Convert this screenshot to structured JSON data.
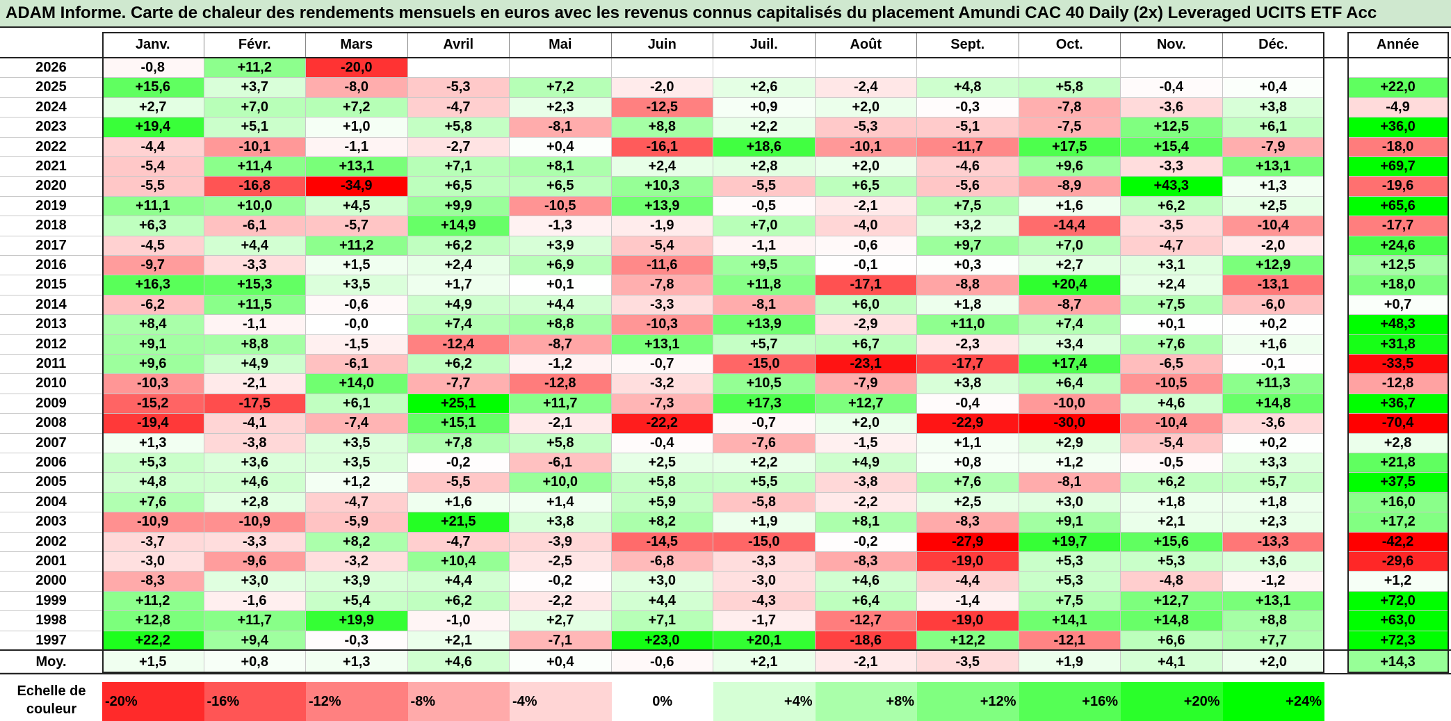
{
  "title": "ADAM Informe. Carte de chaleur des rendements mensuels en euros avec les revenus connus capitalisés du placement Amundi CAC 40 Daily (2x) Leveraged UCITS ETF Acc",
  "chart_data": {
    "type": "heatmap",
    "title": "ADAM Informe. Carte de chaleur des rendements mensuels en euros avec les revenus connus capitalisés du placement Amundi CAC 40 Daily (2x) Leveraged UCITS ETF Acc",
    "months": [
      "Janv.",
      "Févr.",
      "Mars",
      "Avril",
      "Mai",
      "Juin",
      "Juil.",
      "Août",
      "Sept.",
      "Oct.",
      "Nov.",
      "Déc."
    ],
    "year_header": "Année",
    "avg_label": "Moy.",
    "rows": [
      {
        "year": "2026",
        "values": [
          "-0,8",
          "+11,2",
          "-20,0",
          "",
          "",
          "",
          "",
          "",
          "",
          "",
          "",
          ""
        ],
        "annual": ""
      },
      {
        "year": "2025",
        "values": [
          "+15,6",
          "+3,7",
          "-8,0",
          "-5,3",
          "+7,2",
          "-2,0",
          "+2,6",
          "-2,4",
          "+4,8",
          "+5,8",
          "-0,4",
          "+0,4"
        ],
        "annual": "+22,0"
      },
      {
        "year": "2024",
        "values": [
          "+2,7",
          "+7,0",
          "+7,2",
          "-4,7",
          "+2,3",
          "-12,5",
          "+0,9",
          "+2,0",
          "-0,3",
          "-7,8",
          "-3,6",
          "+3,8"
        ],
        "annual": "-4,9"
      },
      {
        "year": "2023",
        "values": [
          "+19,4",
          "+5,1",
          "+1,0",
          "+5,8",
          "-8,1",
          "+8,8",
          "+2,2",
          "-5,3",
          "-5,1",
          "-7,5",
          "+12,5",
          "+6,1"
        ],
        "annual": "+36,0"
      },
      {
        "year": "2022",
        "values": [
          "-4,4",
          "-10,1",
          "-1,1",
          "-2,7",
          "+0,4",
          "-16,1",
          "+18,6",
          "-10,1",
          "-11,7",
          "+17,5",
          "+15,4",
          "-7,9"
        ],
        "annual": "-18,0"
      },
      {
        "year": "2021",
        "values": [
          "-5,4",
          "+11,4",
          "+13,1",
          "+7,1",
          "+8,1",
          "+2,4",
          "+2,8",
          "+2,0",
          "-4,6",
          "+9,6",
          "-3,3",
          "+13,1"
        ],
        "annual": "+69,7"
      },
      {
        "year": "2020",
        "values": [
          "-5,5",
          "-16,8",
          "-34,9",
          "+6,5",
          "+6,5",
          "+10,3",
          "-5,5",
          "+6,5",
          "-5,6",
          "-8,9",
          "+43,3",
          "+1,3"
        ],
        "annual": "-19,6"
      },
      {
        "year": "2019",
        "values": [
          "+11,1",
          "+10,0",
          "+4,5",
          "+9,9",
          "-10,5",
          "+13,9",
          "-0,5",
          "-2,1",
          "+7,5",
          "+1,6",
          "+6,2",
          "+2,5"
        ],
        "annual": "+65,6"
      },
      {
        "year": "2018",
        "values": [
          "+6,3",
          "-6,1",
          "-5,7",
          "+14,9",
          "-1,3",
          "-1,9",
          "+7,0",
          "-4,0",
          "+3,2",
          "-14,4",
          "-3,5",
          "-10,4"
        ],
        "annual": "-17,7"
      },
      {
        "year": "2017",
        "values": [
          "-4,5",
          "+4,4",
          "+11,2",
          "+6,2",
          "+3,9",
          "-5,4",
          "-1,1",
          "-0,6",
          "+9,7",
          "+7,0",
          "-4,7",
          "-2,0"
        ],
        "annual": "+24,6"
      },
      {
        "year": "2016",
        "values": [
          "-9,7",
          "-3,3",
          "+1,5",
          "+2,4",
          "+6,9",
          "-11,6",
          "+9,5",
          "-0,1",
          "+0,3",
          "+2,7",
          "+3,1",
          "+12,9"
        ],
        "annual": "+12,5"
      },
      {
        "year": "2015",
        "values": [
          "+16,3",
          "+15,3",
          "+3,5",
          "+1,7",
          "+0,1",
          "-7,8",
          "+11,8",
          "-17,1",
          "-8,8",
          "+20,4",
          "+2,4",
          "-13,1"
        ],
        "annual": "+18,0"
      },
      {
        "year": "2014",
        "values": [
          "-6,2",
          "+11,5",
          "-0,6",
          "+4,9",
          "+4,4",
          "-3,3",
          "-8,1",
          "+6,0",
          "+1,8",
          "-8,7",
          "+7,5",
          "-6,0"
        ],
        "annual": "+0,7"
      },
      {
        "year": "2013",
        "values": [
          "+8,4",
          "-1,1",
          "-0,0",
          "+7,4",
          "+8,8",
          "-10,3",
          "+13,9",
          "-2,9",
          "+11,0",
          "+7,4",
          "+0,1",
          "+0,2"
        ],
        "annual": "+48,3"
      },
      {
        "year": "2012",
        "values": [
          "+9,1",
          "+8,8",
          "-1,5",
          "-12,4",
          "-8,7",
          "+13,1",
          "+5,7",
          "+6,7",
          "-2,3",
          "+3,4",
          "+7,6",
          "+1,6"
        ],
        "annual": "+31,8"
      },
      {
        "year": "2011",
        "values": [
          "+9,6",
          "+4,9",
          "-6,1",
          "+6,2",
          "-1,2",
          "-0,7",
          "-15,0",
          "-23,1",
          "-17,7",
          "+17,4",
          "-6,5",
          "-0,1"
        ],
        "annual": "-33,5"
      },
      {
        "year": "2010",
        "values": [
          "-10,3",
          "-2,1",
          "+14,0",
          "-7,7",
          "-12,8",
          "-3,2",
          "+10,5",
          "-7,9",
          "+3,8",
          "+6,4",
          "-10,5",
          "+11,3"
        ],
        "annual": "-12,8"
      },
      {
        "year": "2009",
        "values": [
          "-15,2",
          "-17,5",
          "+6,1",
          "+25,1",
          "+11,7",
          "-7,3",
          "+17,3",
          "+12,7",
          "-0,4",
          "-10,0",
          "+4,6",
          "+14,8"
        ],
        "annual": "+36,7"
      },
      {
        "year": "2008",
        "values": [
          "-19,4",
          "-4,1",
          "-7,4",
          "+15,1",
          "-2,1",
          "-22,2",
          "-0,7",
          "+2,0",
          "-22,9",
          "-30,0",
          "-10,4",
          "-3,6"
        ],
        "annual": "-70,4"
      },
      {
        "year": "2007",
        "values": [
          "+1,3",
          "-3,8",
          "+3,5",
          "+7,8",
          "+5,8",
          "-0,4",
          "-7,6",
          "-1,5",
          "+1,1",
          "+2,9",
          "-5,4",
          "+0,2"
        ],
        "annual": "+2,8"
      },
      {
        "year": "2006",
        "values": [
          "+5,3",
          "+3,6",
          "+3,5",
          "-0,2",
          "-6,1",
          "+2,5",
          "+2,2",
          "+4,9",
          "+0,8",
          "+1,2",
          "-0,5",
          "+3,3"
        ],
        "annual": "+21,8"
      },
      {
        "year": "2005",
        "values": [
          "+4,8",
          "+4,6",
          "+1,2",
          "-5,5",
          "+10,0",
          "+5,8",
          "+5,5",
          "-3,8",
          "+7,6",
          "-8,1",
          "+6,2",
          "+5,7"
        ],
        "annual": "+37,5"
      },
      {
        "year": "2004",
        "values": [
          "+7,6",
          "+2,8",
          "-4,7",
          "+1,6",
          "+1,4",
          "+5,9",
          "-5,8",
          "-2,2",
          "+2,5",
          "+3,0",
          "+1,8",
          "+1,8"
        ],
        "annual": "+16,0"
      },
      {
        "year": "2003",
        "values": [
          "-10,9",
          "-10,9",
          "-5,9",
          "+21,5",
          "+3,8",
          "+8,2",
          "+1,9",
          "+8,1",
          "-8,3",
          "+9,1",
          "+2,1",
          "+2,3"
        ],
        "annual": "+17,2"
      },
      {
        "year": "2002",
        "values": [
          "-3,7",
          "-3,3",
          "+8,2",
          "-4,7",
          "-3,9",
          "-14,5",
          "-15,0",
          "-0,2",
          "-27,9",
          "+19,7",
          "+15,6",
          "-13,3"
        ],
        "annual": "-42,2"
      },
      {
        "year": "2001",
        "values": [
          "-3,0",
          "-9,6",
          "-3,2",
          "+10,4",
          "-2,5",
          "-6,8",
          "-3,3",
          "-8,3",
          "-19,0",
          "+5,3",
          "+5,3",
          "+3,6"
        ],
        "annual": "-29,6"
      },
      {
        "year": "2000",
        "values": [
          "-8,3",
          "+3,0",
          "+3,9",
          "+4,4",
          "-0,2",
          "+3,0",
          "-3,0",
          "+4,6",
          "-4,4",
          "+5,3",
          "-4,8",
          "-1,2"
        ],
        "annual": "+1,2"
      },
      {
        "year": "1999",
        "values": [
          "+11,2",
          "-1,6",
          "+5,4",
          "+6,2",
          "-2,2",
          "+4,4",
          "-4,3",
          "+6,4",
          "-1,4",
          "+7,5",
          "+12,7",
          "+13,1"
        ],
        "annual": "+72,0"
      },
      {
        "year": "1998",
        "values": [
          "+12,8",
          "+11,7",
          "+19,9",
          "-1,0",
          "+2,7",
          "+7,1",
          "-1,7",
          "-12,7",
          "-19,0",
          "+14,1",
          "+14,8",
          "+8,8"
        ],
        "annual": "+63,0"
      },
      {
        "year": "1997",
        "values": [
          "+22,2",
          "+9,4",
          "-0,3",
          "+2,1",
          "-7,1",
          "+23,0",
          "+20,1",
          "-18,6",
          "+12,2",
          "-12,1",
          "+6,6",
          "+7,7"
        ],
        "annual": "+72,3"
      }
    ],
    "average": {
      "values": [
        "+1,5",
        "+0,8",
        "+1,3",
        "+4,6",
        "+0,4",
        "-0,6",
        "+2,1",
        "-2,1",
        "-3,5",
        "+1,9",
        "+4,1",
        "+2,0"
      ],
      "annual": "+14,3"
    },
    "scale_label": "Echelle de couleur",
    "scale": [
      "-20%",
      "-16%",
      "-12%",
      "-8%",
      "-4%",
      "0%",
      "+4%",
      "+8%",
      "+12%",
      "+16%",
      "+20%",
      "+24%"
    ],
    "colors": {
      "negative": "#ff0000",
      "positive": "#00ff00",
      "neutral": "#ffffff",
      "title_bg": "#cfe8cf"
    }
  }
}
